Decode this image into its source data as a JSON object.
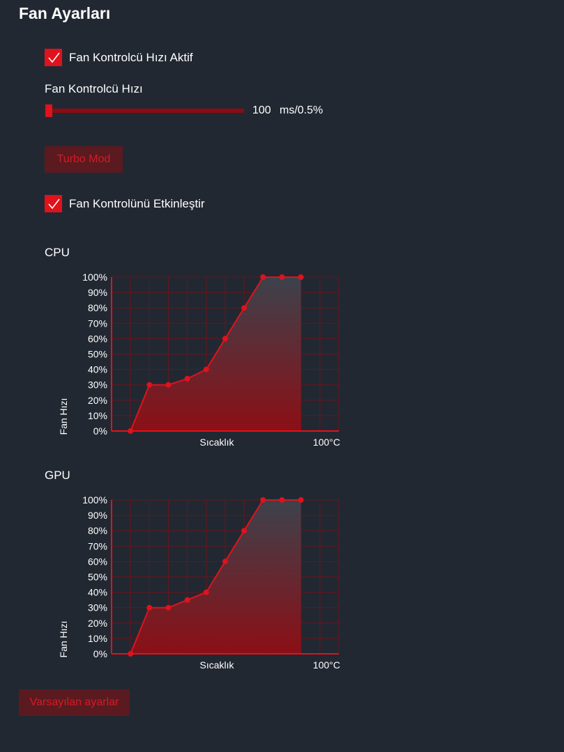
{
  "page": {
    "title": "Fan Ayarları"
  },
  "controller": {
    "active_label": "Fan Kontrolcü Hızı Aktif",
    "active_checked": true,
    "speed_label": "Fan Kontrolcü Hızı",
    "speed_value": "100",
    "speed_unit": "ms/0.5%",
    "speed_fraction": 0.0
  },
  "turbo_button": "Turbo Mod",
  "enable_fan": {
    "label": "Fan Kontrolünü Etkinleştir",
    "checked": true
  },
  "accent_color": "#e0121c",
  "charts": {
    "cpu": {
      "label": "CPU"
    },
    "gpu": {
      "label": "GPU"
    }
  },
  "chart_data": [
    {
      "type": "line",
      "title": "CPU",
      "xlabel": "Sıcaklık",
      "ylabel": "Fan Hızı",
      "x_tick_label": "100°C",
      "y_ticks": [
        "0%",
        "10%",
        "20%",
        "30%",
        "40%",
        "50%",
        "60%",
        "70%",
        "80%",
        "90%",
        "100%"
      ],
      "x": [
        10,
        20,
        30,
        40,
        50,
        60,
        70,
        80,
        90,
        100
      ],
      "values": [
        0,
        30,
        30,
        34,
        40,
        60,
        80,
        100,
        100,
        100
      ],
      "xlim": [
        0,
        120
      ],
      "ylim": [
        0,
        100
      ],
      "grid": true,
      "area_fill": true
    },
    {
      "type": "line",
      "title": "GPU",
      "xlabel": "Sıcaklık",
      "ylabel": "Fan Hızı",
      "x_tick_label": "100°C",
      "y_ticks": [
        "0%",
        "10%",
        "20%",
        "30%",
        "40%",
        "50%",
        "60%",
        "70%",
        "80%",
        "90%",
        "100%"
      ],
      "x": [
        10,
        20,
        30,
        40,
        50,
        60,
        70,
        80,
        90,
        100
      ],
      "values": [
        0,
        30,
        30,
        35,
        40,
        60,
        80,
        100,
        100,
        100
      ],
      "xlim": [
        0,
        120
      ],
      "ylim": [
        0,
        100
      ],
      "grid": true,
      "area_fill": true
    }
  ],
  "reset_button": "Varsayılan ayarlar"
}
